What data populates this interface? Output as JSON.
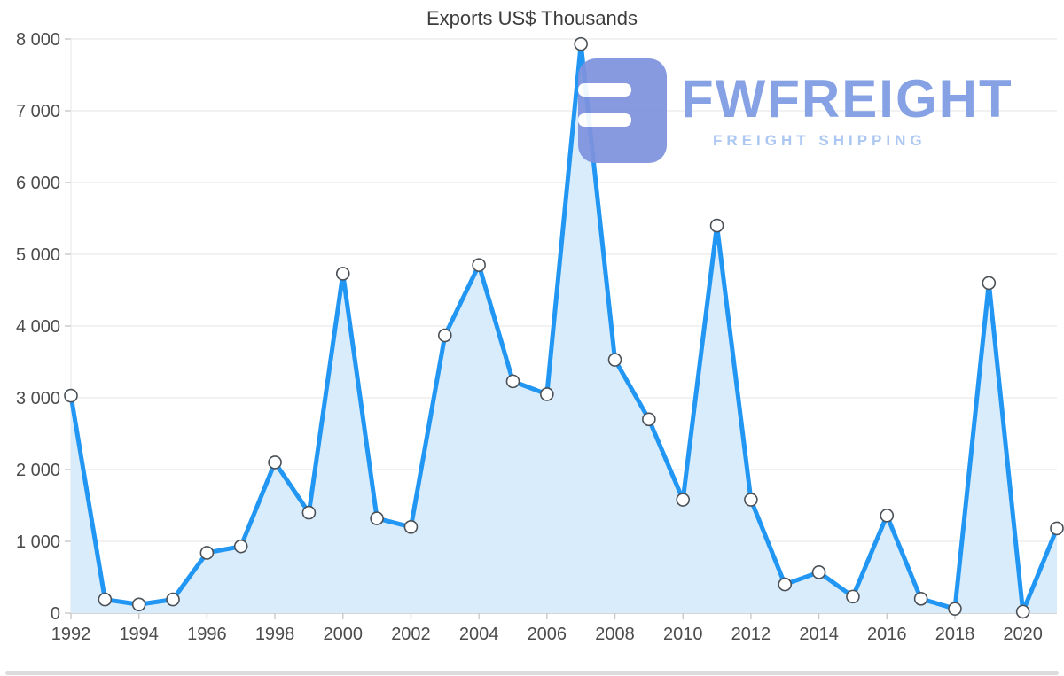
{
  "watermark": {
    "brand": "FWFREIGHT",
    "tagline": "FREIGHT SHIPPING",
    "brand_color": "#7d9ce4",
    "tagline_color": "#a6c3f0",
    "icon_color": "#7e93de"
  },
  "chart_data": {
    "type": "area",
    "title": "Exports US$ Thousands",
    "xlabel": "",
    "ylabel": "",
    "x": [
      1992,
      1993,
      1994,
      1995,
      1996,
      1997,
      1998,
      1999,
      2000,
      2001,
      2002,
      2003,
      2004,
      2005,
      2006,
      2007,
      2008,
      2009,
      2010,
      2011,
      2012,
      2013,
      2014,
      2015,
      2016,
      2017,
      2018,
      2019,
      2020,
      2021
    ],
    "values": [
      3030,
      190,
      120,
      190,
      840,
      930,
      2100,
      1400,
      4730,
      1320,
      1200,
      3870,
      4850,
      3230,
      3050,
      7930,
      3530,
      2700,
      1580,
      5400,
      1580,
      400,
      570,
      230,
      1360,
      200,
      60,
      4600,
      20,
      1180
    ],
    "ylim": [
      0,
      8000
    ],
    "grid": true,
    "legend": "none",
    "y_ticks": {
      "values": [
        0,
        1000,
        2000,
        3000,
        4000,
        5000,
        6000,
        7000,
        8000
      ],
      "labels": [
        "0",
        "1 000",
        "2 000",
        "3 000",
        "4 000",
        "5 000",
        "6 000",
        "7 000",
        "8 000"
      ]
    },
    "x_ticks": {
      "values": [
        1992,
        1994,
        1996,
        1998,
        2000,
        2002,
        2004,
        2006,
        2008,
        2010,
        2012,
        2014,
        2016,
        2018,
        2020
      ],
      "labels": [
        "1992",
        "1994",
        "1996",
        "1998",
        "2000",
        "2002",
        "2004",
        "2006",
        "2008",
        "2010",
        "2012",
        "2014",
        "2016",
        "2018",
        "2020"
      ]
    },
    "colors": {
      "line": "#2196f3",
      "fill": "#d9ecfc",
      "marker_fill": "#ffffff",
      "marker_stroke": "#4a5056",
      "grid": "#e6e6e6",
      "axis": "#c8c8c8",
      "tick_text": "#4c4c4c"
    }
  }
}
